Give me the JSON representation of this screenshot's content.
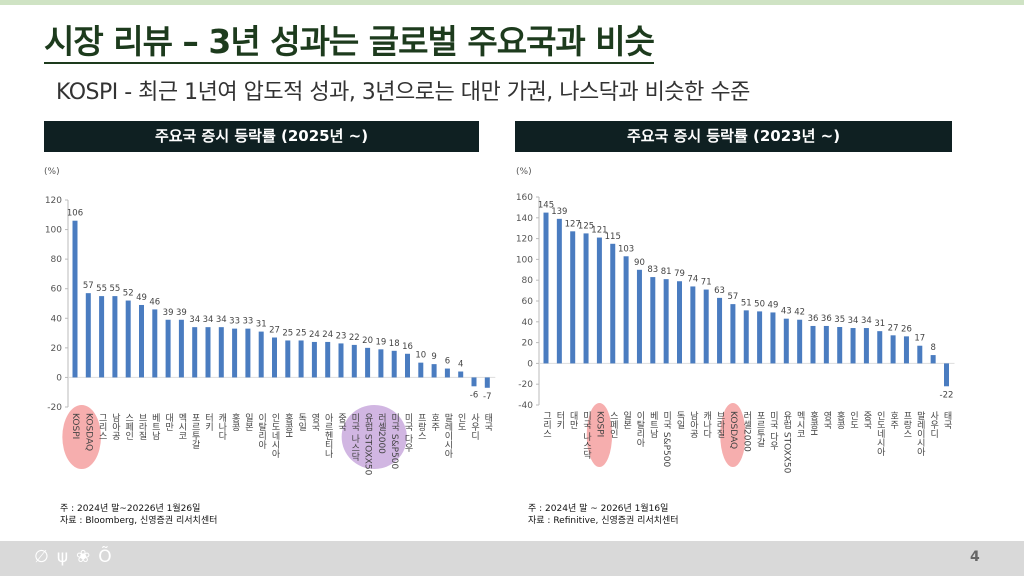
{
  "title": "시장 리뷰 – 3년 성과는 글로벌 주요국과 비슷",
  "subtitle": "KOSPI - 최근 1년여 압도적 성과, 3년으로는 대만 가권, 나스닥과 비슷한 수준",
  "page_number": "4",
  "footer_icons": [
    "leaf-icon",
    "sprout-icon",
    "flower-icon",
    "fruit-icon"
  ],
  "colors": {
    "bar": "#4a7cc0",
    "highlight_pink": "#f4a0a0",
    "highlight_purple": "#c9a9dd",
    "header": "#0f2022",
    "title": "#1d3b1d"
  },
  "chart_data": [
    {
      "type": "bar",
      "title": "주요국 증시 등락률 (2025년 ~)",
      "ylabel": "(%)",
      "ylim": [
        -20,
        120
      ],
      "yticks": [
        -20,
        0,
        20,
        40,
        60,
        80,
        100,
        120
      ],
      "categories": [
        "KOSPI",
        "KOSDAQ",
        "그리스",
        "남아공",
        "스페인",
        "브라질",
        "베트남",
        "대만",
        "멕시코",
        "포르투갈",
        "터키",
        "캐나다",
        "홍콩",
        "일본",
        "이탈리아",
        "인도네시아",
        "홍콩H",
        "독일",
        "영국",
        "아르헨티나",
        "중국",
        "미국 나스닥",
        "유럽 STOXX50",
        "러셀2000",
        "미국 S&P500",
        "미국 다우",
        "프랑스",
        "호주",
        "말레이시아",
        "인도",
        "사우디",
        "태국"
      ],
      "values": [
        106,
        57,
        55,
        55,
        52,
        49,
        46,
        39,
        39,
        34,
        34,
        34,
        33,
        33,
        31,
        27,
        25,
        25,
        24,
        24,
        23,
        22,
        20,
        19,
        18,
        16,
        10,
        9,
        6,
        4,
        -6,
        -7
      ],
      "highlights": [
        {
          "from": 0,
          "to": 1,
          "color": "pink"
        },
        {
          "from": 21,
          "to": 24,
          "color": "purple"
        }
      ],
      "note": "주 : 2024년 말~20226년 1월26일",
      "source": "자료 : Bloomberg, 신영증권 리서치센터"
    },
    {
      "type": "bar",
      "title": "주요국 증시 등락률 (2023년 ~)",
      "ylabel": "(%)",
      "ylim": [
        -40,
        160
      ],
      "yticks": [
        -40,
        -20,
        0,
        20,
        40,
        60,
        80,
        100,
        120,
        140,
        160
      ],
      "categories": [
        "그리스",
        "터키",
        "대만",
        "미국 나스닥",
        "KOSPI",
        "스페인",
        "일본",
        "이탈리아",
        "베트남",
        "미국 S&P500",
        "독일",
        "남아공",
        "캐나다",
        "브라질",
        "KOSDAQ",
        "러셀2000",
        "포르투갈",
        "미국 다우",
        "유럽 STOXX50",
        "멕시코",
        "홍콩H",
        "영국",
        "홍콩",
        "인도",
        "중국",
        "인도네시아",
        "호주",
        "프랑스",
        "말레이시아",
        "사우디",
        "태국"
      ],
      "values": [
        145,
        139,
        127,
        125,
        121,
        115,
        103,
        90,
        83,
        81,
        79,
        74,
        71,
        63,
        57,
        51,
        50,
        49,
        43,
        42,
        36,
        36,
        35,
        34,
        34,
        31,
        27,
        26,
        17,
        8,
        -22
      ],
      "highlights": [
        {
          "from": 4,
          "to": 4,
          "color": "pink"
        },
        {
          "from": 14,
          "to": 14,
          "color": "pink"
        }
      ],
      "note": "주 : 2024년 말 ~ 2026년 1월16일",
      "source": "자료 : Refinitive, 신영증권 리서치센터"
    }
  ]
}
